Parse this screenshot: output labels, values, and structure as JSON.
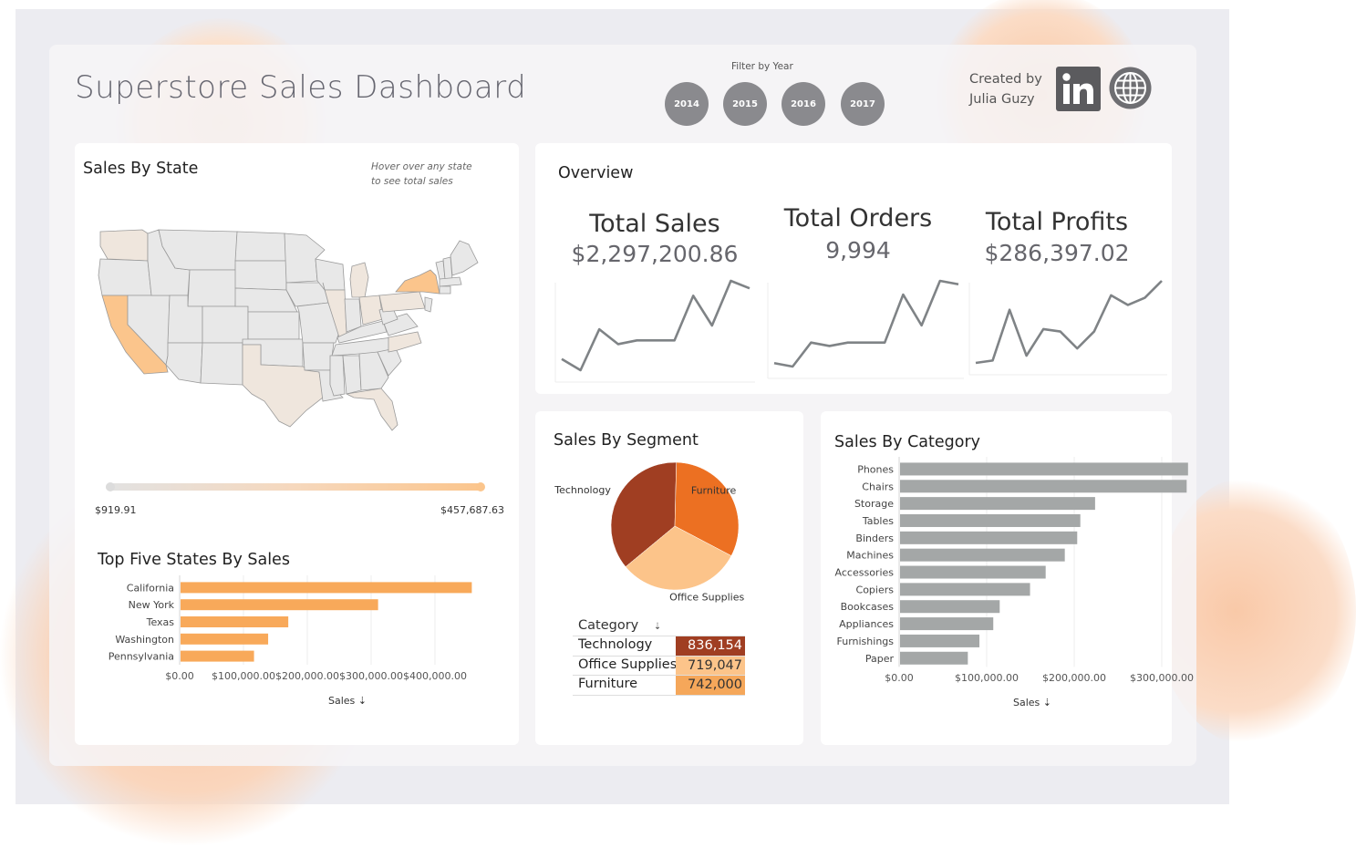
{
  "header": {
    "title": "Superstore Sales Dashboard",
    "filter_label": "Filter by Year",
    "years": [
      "2014",
      "2015",
      "2016",
      "2017"
    ],
    "created_by": "Created by",
    "author": "Julia Guzy",
    "linkedin_icon": "linkedin-icon",
    "website_icon": "globe-icon"
  },
  "map": {
    "title": "Sales By State",
    "hint_line1": "Hover over any state",
    "hint_line2": "to see total sales",
    "legend_min": "$919.91",
    "legend_max": "$457,687.63",
    "highlight_color": "#fbc58c",
    "light_color": "#efe6dd",
    "base_color": "#e8e8e8"
  },
  "overview": {
    "title": "Overview",
    "kpis": [
      {
        "label": "Total Sales",
        "value": "$2,297,200.86"
      },
      {
        "label": "Total Orders",
        "value": "9,994"
      },
      {
        "label": "Total Profits",
        "value": "$286,397.02"
      }
    ]
  },
  "segment": {
    "title": "Sales By Segment",
    "table_header": "Category",
    "rows": [
      {
        "name": "Technology",
        "value": "836,154",
        "color": "#a03e22",
        "text_color": "#ffffff"
      },
      {
        "name": "Office Supplies",
        "value": "719,047",
        "color": "#fcc48a",
        "text_color": "#333333"
      },
      {
        "name": "Furniture",
        "value": "742,000",
        "color": "#f5a75a",
        "text_color": "#333333"
      }
    ]
  },
  "chart_data": [
    {
      "type": "bar",
      "orientation": "horizontal",
      "title": "Top Five States By Sales",
      "categories": [
        "California",
        "New York",
        "Texas",
        "Washington",
        "Pennsylvania"
      ],
      "values": [
        457687.63,
        310876,
        170188,
        138641,
        116512
      ],
      "xlabel": "Sales",
      "xticks": [
        "$0.00",
        "$100,000.00",
        "$200,000.00",
        "$300,000.00",
        "$400,000.00"
      ],
      "xlim": [
        0,
        480000
      ],
      "color": "#f8a95a",
      "grid": true
    },
    {
      "type": "line",
      "title": "Total Sales",
      "values": [
        6,
        3,
        14,
        10,
        11,
        11,
        11,
        23,
        15,
        27,
        25
      ],
      "color": "#7f8386"
    },
    {
      "type": "line",
      "title": "Total Orders",
      "values": [
        6,
        5,
        12,
        11,
        12,
        12,
        12,
        26,
        17,
        30,
        29
      ],
      "color": "#7f8386"
    },
    {
      "type": "line",
      "title": "Total Profits",
      "values": [
        3,
        4,
        25,
        6,
        17,
        16,
        9,
        16,
        31,
        27,
        30,
        37
      ],
      "color": "#7f8386"
    },
    {
      "type": "pie",
      "title": "Sales By Segment",
      "labels": [
        "Technology",
        "Furniture",
        "Office Supplies"
      ],
      "values": [
        836154,
        742000,
        719047
      ],
      "colors": [
        "#a03e22",
        "#ec7022",
        "#fcc48a"
      ]
    },
    {
      "type": "bar",
      "orientation": "horizontal",
      "title": "Sales By Category",
      "categories": [
        "Phones",
        "Chairs",
        "Storage",
        "Tables",
        "Binders",
        "Machines",
        "Accessories",
        "Copiers",
        "Bookcases",
        "Appliances",
        "Furnishings",
        "Paper"
      ],
      "values": [
        330007,
        328449,
        223844,
        206966,
        203413,
        189239,
        167380,
        149528,
        114880,
        107532,
        91705,
        78479
      ],
      "xlabel": "Sales",
      "xticks": [
        "$0.00",
        "$100,000.00",
        "$200,000.00",
        "$300,000.00"
      ],
      "xlim": [
        0,
        345000
      ],
      "color": "#a4a7a7",
      "grid": true
    }
  ]
}
